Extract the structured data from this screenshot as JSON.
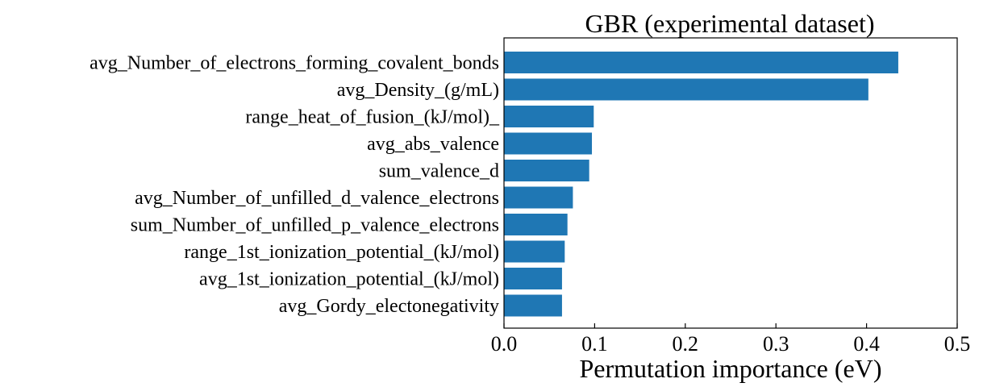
{
  "chart_data": {
    "type": "bar",
    "orientation": "horizontal",
    "title": "GBR (experimental dataset)",
    "xlabel": "Permutation importance (eV)",
    "ylabel": "",
    "xlim": [
      0.0,
      0.5
    ],
    "xticks": [
      "0.0",
      "0.1",
      "0.2",
      "0.3",
      "0.4",
      "0.5"
    ],
    "grid": false,
    "bar_color": "#1f77b4",
    "categories": [
      "avg_Number_of_electrons_forming_covalent_bonds",
      "avg_Density_(g/mL)",
      "range_heat_of_fusion_(kJ/mol)_",
      "avg_abs_valence",
      "sum_valence_d",
      "avg_Number_of_unfilled_d_valence_electrons",
      "sum_Number_of_unfilled_p_valence_electrons",
      "range_1st_ionization_potential_(kJ/mol)",
      "avg_1st_ionization_potential_(kJ/mol)",
      "avg_Gordy_electonegativity"
    ],
    "values": [
      0.435,
      0.402,
      0.099,
      0.097,
      0.094,
      0.076,
      0.07,
      0.067,
      0.064,
      0.064
    ]
  }
}
